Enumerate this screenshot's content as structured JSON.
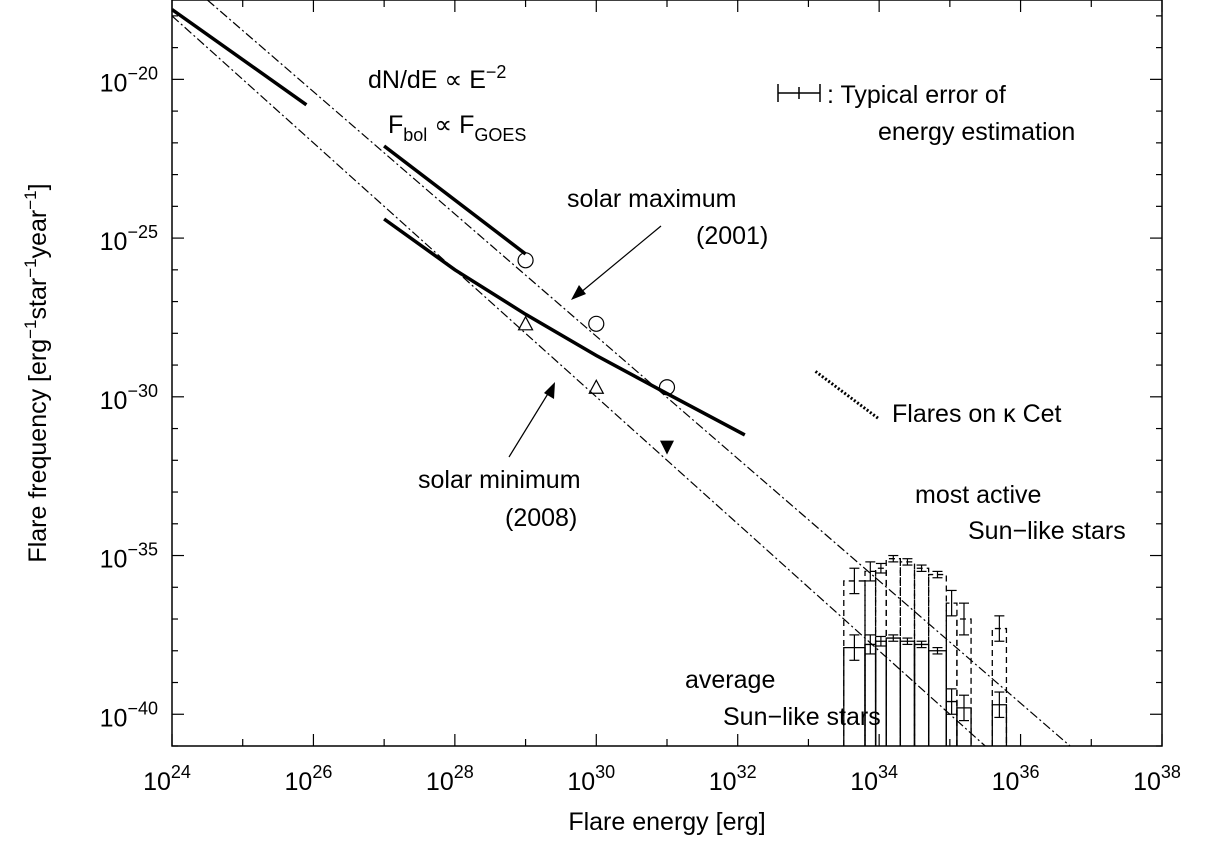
{
  "chart_data": {
    "type": "line",
    "x_scale": "log10",
    "y_scale": "log10",
    "xlim_exp": [
      24,
      38
    ],
    "ylim_exp": [
      -41,
      -17.5
    ],
    "x_tick_exponents": [
      24,
      26,
      28,
      30,
      32,
      34,
      36,
      38
    ],
    "y_tick_exponents": [
      -40,
      -35,
      -30,
      -25,
      -20
    ],
    "xlabel": "Flare energy [erg]",
    "ylabel": "Flare frequency [erg",
    "ylabel_parts": [
      "Flare frequency [erg",
      "−1",
      "star",
      "−1",
      "year",
      "−1",
      "]"
    ],
    "tick_base": "10",
    "grid": false,
    "annotations": {
      "power_law_1": "dN/dE ∝ E",
      "power_law_1_exp": "−2",
      "power_law_2": {
        "a": "F",
        "a_sub": "bol",
        "rel": " ∝ F",
        "b_sub": "GOES"
      },
      "error_note_1": ": Typical error of",
      "error_note_2": "energy estimation",
      "solar_max_1": "solar maximum",
      "solar_max_2": "(2001)",
      "solar_min_1": "solar minimum",
      "solar_min_2": "(2008)",
      "kappa_cet": "Flares on κ Cet",
      "most_active_1": "most active",
      "most_active_2": "Sun−like stars",
      "average_1": "average",
      "average_2": "Sun−like stars"
    },
    "series": [
      {
        "style": "thick-solid",
        "points": [
          [
            24,
            -17.8
          ],
          [
            25.9,
            -20.8
          ]
        ]
      },
      {
        "style": "thick-solid",
        "points": [
          [
            27,
            -22.1
          ],
          [
            29,
            -25.5
          ]
        ]
      },
      {
        "style": "thick-solid",
        "points": [
          [
            27,
            -24.4
          ],
          [
            28,
            -26.0
          ],
          [
            29,
            -27.4
          ],
          [
            30,
            -28.7
          ],
          [
            31,
            -29.9
          ],
          [
            32.1,
            -31.2
          ]
        ]
      },
      {
        "style": "dash-dot",
        "points": [
          [
            24.5,
            -17.5
          ],
          [
            36.7,
            -41.0
          ]
        ]
      },
      {
        "style": "dash-dot",
        "points": [
          [
            24,
            -18.0
          ],
          [
            35.5,
            -41.0
          ]
        ]
      },
      {
        "style": "dotted",
        "points": [
          [
            33.1,
            -29.2
          ],
          [
            34.0,
            -30.7
          ]
        ]
      }
    ],
    "markers": {
      "circles": [
        [
          29,
          -25.7
        ],
        [
          30,
          -27.7
        ],
        [
          31,
          -29.7
        ]
      ],
      "triangles": [
        [
          29,
          -27.7
        ],
        [
          30,
          -29.7
        ]
      ],
      "filled_triangle": [
        31.0,
        -31.6
      ]
    },
    "histograms": [
      {
        "name": "most active Sun−like stars",
        "style": "dashed",
        "edges": [
          33.5,
          33.8,
          33.95,
          34.1,
          34.3,
          34.5,
          34.7,
          34.95,
          35.1,
          35.3,
          35.6,
          35.8
        ],
        "y": [
          -35.8,
          -35.5,
          -35.4,
          -35.1,
          -35.2,
          -35.4,
          -35.6,
          -36.5,
          -37.0,
          null,
          -37.3
        ],
        "err": [
          0.4,
          0.3,
          0.15,
          0.1,
          0.1,
          0.1,
          0.1,
          0.4,
          0.5,
          null,
          0.4
        ]
      },
      {
        "name": "average Sun−like stars",
        "style": "solid",
        "edges": [
          33.5,
          33.8,
          33.95,
          34.1,
          34.3,
          34.5,
          34.7,
          34.95,
          35.1,
          35.3,
          35.6,
          35.8
        ],
        "y": [
          -37.9,
          -37.8,
          -37.7,
          -37.6,
          -37.7,
          -37.8,
          -38.0,
          -39.6,
          -39.8,
          null,
          -39.7
        ],
        "err": [
          0.4,
          0.3,
          0.15,
          0.1,
          0.1,
          0.1,
          0.1,
          0.4,
          0.4,
          null,
          0.4
        ]
      }
    ]
  }
}
